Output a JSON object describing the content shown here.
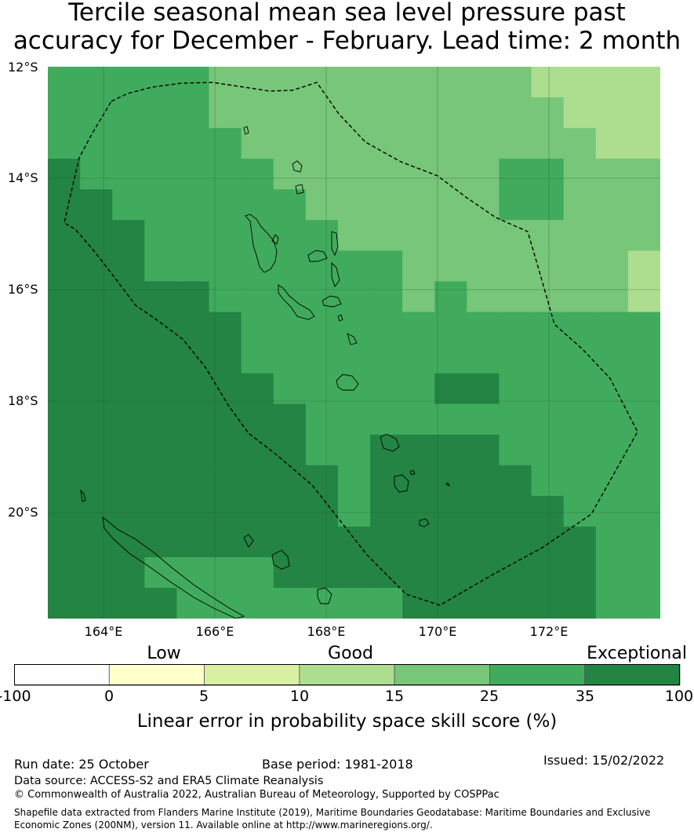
{
  "title_line1": "Tercile seasonal mean sea level pressure past",
  "title_line2": "accuracy for December - February. Lead time: 2 month",
  "lat_labels": [
    "12°S",
    "14°S",
    "16°S",
    "18°S",
    "20°S"
  ],
  "lon_labels": [
    "164°E",
    "166°E",
    "168°E",
    "170°E",
    "172°E"
  ],
  "colorbar": {
    "category_labels": [
      "Low",
      "Good",
      "Exceptional"
    ],
    "ticks": [
      "-100",
      "0",
      "5",
      "10",
      "15",
      "25",
      "35",
      "100"
    ],
    "colors": [
      "#ffffff",
      "#ffffcc",
      "#d9f0a3",
      "#addd8e",
      "#78c679",
      "#41ab5d",
      "#238443"
    ],
    "title": "Linear error in probability space skill score (%)"
  },
  "footer": {
    "run_date": "Run date: 25 October",
    "base_period": "Base period: 1981-2018",
    "issued": "Issued: 15/02/2022",
    "data_source": "Data source: ACCESS-S2 and ERA5 Climate Reanalysis",
    "copyright": "© Commonwealth of Australia 2022, Australian Bureau of Meteorology, Supported by COSPPac",
    "shapefile_note": "Shapefile data extracted from Flanders Marine Institute (2019), Maritime Boundaries Geodatabase: Maritime Boundaries and Exclusive Economic Zones (200NM), version 11. Available online at http://www.marineregions.org/."
  },
  "map_data": {
    "extent": {
      "lon_min": 163.0,
      "lon_max": 174.0,
      "lat_min": -21.85,
      "lat_max": -12.0
    },
    "grid_step_deg": 0.833,
    "category_palette": [
      "#238443",
      "#41ab5d",
      "#78c679",
      "#addd8e"
    ],
    "skill_grid": [
      "1111122222222223333",
      "1111122222222222333",
      "1111112222222222233",
      "0111111222222211222",
      "0011111122222211222",
      "0001111112222222222",
      "0001111111122222223",
      "0000011111121222223",
      "0000001111111111111",
      "0000001111111111111",
      "0000000111110011111",
      "0000000011111111111",
      "0000000011000011111",
      "0000000001000001111",
      "0000000001000000111",
      "0000000000000000011",
      "0001111000000000011",
      "0000111111100000011"
    ]
  }
}
